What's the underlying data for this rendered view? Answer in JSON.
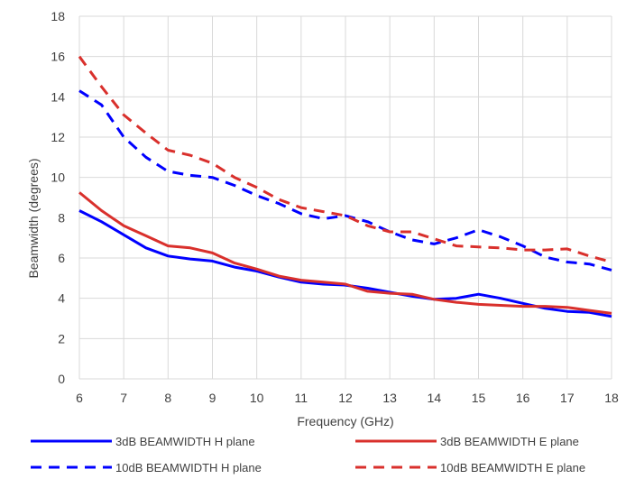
{
  "chart_data": {
    "type": "line",
    "title": "",
    "xlabel": "Frequency (GHz)",
    "ylabel": "Beamwidth (degrees)",
    "xlim": [
      6,
      18
    ],
    "ylim": [
      0,
      18
    ],
    "xticks": [
      "6",
      "7",
      "8",
      "9",
      "10",
      "11",
      "12",
      "13",
      "14",
      "15",
      "16",
      "17",
      "18"
    ],
    "yticks": [
      "0",
      "2",
      "4",
      "6",
      "8",
      "10",
      "12",
      "14",
      "16",
      "18"
    ],
    "grid": "horizontal",
    "legend_position": "bottom",
    "x": [
      6,
      6.5,
      7,
      7.5,
      8,
      8.5,
      9,
      9.5,
      10,
      10.5,
      11,
      11.5,
      12,
      12.5,
      13,
      13.5,
      14,
      14.5,
      15,
      15.5,
      16,
      16.5,
      17,
      17.5,
      18
    ],
    "series": [
      {
        "name": "3dB BEAMWIDTH H plane",
        "color": "#0000ff",
        "dash": "solid",
        "values": [
          8.35,
          7.8,
          7.15,
          6.5,
          6.1,
          5.95,
          5.85,
          5.55,
          5.35,
          5.05,
          4.8,
          4.7,
          4.65,
          4.5,
          4.3,
          4.1,
          3.95,
          4.0,
          4.2,
          4.0,
          3.75,
          3.5,
          3.35,
          3.3,
          3.1
        ]
      },
      {
        "name": "3dB BEAMWIDTH E plane",
        "color": "#d9302c",
        "dash": "solid",
        "values": [
          9.25,
          8.35,
          7.6,
          7.1,
          6.6,
          6.5,
          6.25,
          5.75,
          5.45,
          5.1,
          4.9,
          4.8,
          4.7,
          4.35,
          4.25,
          4.2,
          3.95,
          3.8,
          3.7,
          3.65,
          3.6,
          3.6,
          3.55,
          3.4,
          3.25
        ]
      },
      {
        "name": "10dB BEAMWIDTH H plane",
        "color": "#0000ff",
        "dash": "dashed",
        "values": [
          14.3,
          13.6,
          12.0,
          11.0,
          10.3,
          10.1,
          10.0,
          9.6,
          9.1,
          8.7,
          8.2,
          7.95,
          8.1,
          7.8,
          7.3,
          6.9,
          6.7,
          7.0,
          7.4,
          7.05,
          6.6,
          6.05,
          5.8,
          5.7,
          5.4
        ]
      },
      {
        "name": "10dB BEAMWIDTH E plane",
        "color": "#d9302c",
        "dash": "dashed",
        "values": [
          16.0,
          14.5,
          13.1,
          12.2,
          11.35,
          11.1,
          10.7,
          10.0,
          9.5,
          8.9,
          8.5,
          8.3,
          8.1,
          7.6,
          7.3,
          7.3,
          6.95,
          6.6,
          6.55,
          6.5,
          6.4,
          6.4,
          6.45,
          6.1,
          5.8
        ]
      }
    ]
  }
}
